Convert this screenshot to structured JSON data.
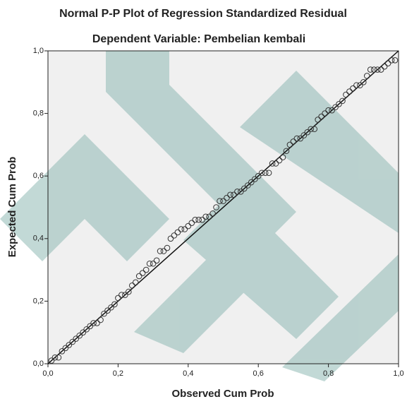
{
  "chart_data": {
    "type": "scatter",
    "title": "Normal P-P Plot of Regression Standardized Residual",
    "subtitle": "Dependent Variable: Pembelian kembali",
    "x_label": "Observed Cum Prob",
    "y_label": "Expected Cum Prob",
    "xlim": [
      0,
      1
    ],
    "ylim": [
      0,
      1
    ],
    "xticks": [
      {
        "value": 0,
        "label": "0,0"
      },
      {
        "value": 0.2,
        "label": "0,2"
      },
      {
        "value": 0.4,
        "label": "0,4"
      },
      {
        "value": 0.6,
        "label": "0,6"
      },
      {
        "value": 0.8,
        "label": "0,8"
      },
      {
        "value": 1,
        "label": "1,0"
      }
    ],
    "yticks": [
      {
        "value": 0,
        "label": "0,0"
      },
      {
        "value": 0.2,
        "label": "0,2"
      },
      {
        "value": 0.4,
        "label": "0,4"
      },
      {
        "value": 0.6,
        "label": "0,6"
      },
      {
        "value": 0.8,
        "label": "0,8"
      },
      {
        "value": 1,
        "label": "1,0"
      }
    ],
    "reference_line": true,
    "color": "#333333",
    "x": [
      0.01,
      0.02,
      0.03,
      0.04,
      0.05,
      0.06,
      0.07,
      0.08,
      0.09,
      0.1,
      0.11,
      0.12,
      0.13,
      0.14,
      0.15,
      0.16,
      0.17,
      0.18,
      0.19,
      0.2,
      0.21,
      0.22,
      0.23,
      0.24,
      0.25,
      0.26,
      0.27,
      0.28,
      0.29,
      0.3,
      0.31,
      0.32,
      0.33,
      0.34,
      0.35,
      0.36,
      0.37,
      0.38,
      0.39,
      0.4,
      0.41,
      0.42,
      0.43,
      0.44,
      0.45,
      0.46,
      0.47,
      0.48,
      0.49,
      0.5,
      0.51,
      0.52,
      0.53,
      0.54,
      0.55,
      0.56,
      0.57,
      0.58,
      0.59,
      0.6,
      0.61,
      0.62,
      0.63,
      0.64,
      0.65,
      0.66,
      0.67,
      0.68,
      0.69,
      0.7,
      0.71,
      0.72,
      0.73,
      0.74,
      0.75,
      0.76,
      0.77,
      0.78,
      0.79,
      0.8,
      0.81,
      0.82,
      0.83,
      0.84,
      0.85,
      0.86,
      0.87,
      0.88,
      0.89,
      0.9,
      0.91,
      0.92,
      0.93,
      0.94,
      0.95,
      0.96,
      0.97,
      0.98,
      0.99
    ],
    "values": [
      0.01,
      0.02,
      0.02,
      0.04,
      0.05,
      0.06,
      0.07,
      0.08,
      0.09,
      0.1,
      0.11,
      0.12,
      0.13,
      0.13,
      0.14,
      0.16,
      0.17,
      0.18,
      0.19,
      0.21,
      0.22,
      0.22,
      0.23,
      0.25,
      0.26,
      0.28,
      0.29,
      0.3,
      0.32,
      0.32,
      0.33,
      0.36,
      0.36,
      0.37,
      0.4,
      0.41,
      0.42,
      0.43,
      0.43,
      0.44,
      0.45,
      0.46,
      0.46,
      0.46,
      0.47,
      0.47,
      0.48,
      0.5,
      0.52,
      0.52,
      0.53,
      0.54,
      0.54,
      0.55,
      0.55,
      0.56,
      0.57,
      0.58,
      0.59,
      0.6,
      0.61,
      0.61,
      0.61,
      0.64,
      0.64,
      0.65,
      0.66,
      0.68,
      0.7,
      0.71,
      0.72,
      0.72,
      0.73,
      0.74,
      0.75,
      0.75,
      0.78,
      0.79,
      0.8,
      0.81,
      0.81,
      0.82,
      0.83,
      0.84,
      0.86,
      0.87,
      0.88,
      0.89,
      0.89,
      0.9,
      0.92,
      0.94,
      0.94,
      0.94,
      0.94,
      0.95,
      0.96,
      0.97,
      0.97
    ]
  }
}
